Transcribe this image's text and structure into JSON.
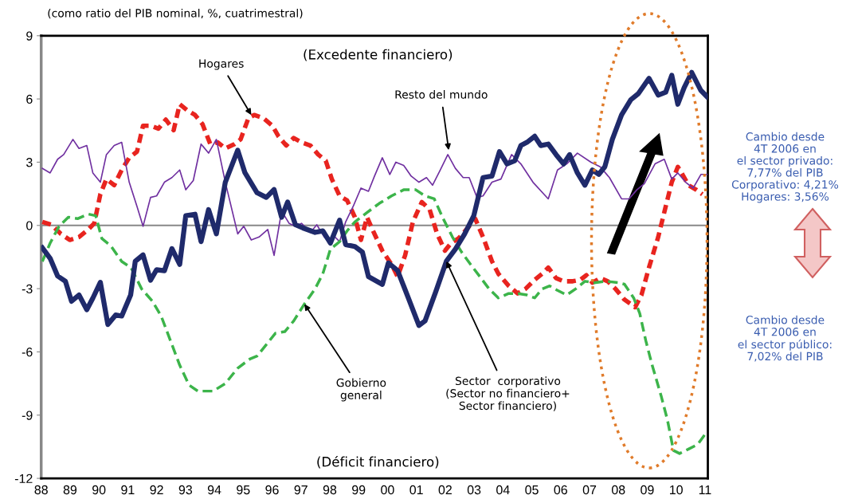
{
  "chart_data": {
    "type": "line",
    "subtitle": "(como ratio del PIB nominal, %, cuatrimestral)",
    "xlim": [
      1988,
      2011.1
    ],
    "ylim": [
      -12,
      9
    ],
    "xticks": [
      {
        "value": 1988,
        "label": "88"
      },
      {
        "value": 1989,
        "label": "89"
      },
      {
        "value": 1990,
        "label": "90"
      },
      {
        "value": 1991,
        "label": "91"
      },
      {
        "value": 1992,
        "label": "92"
      },
      {
        "value": 1993,
        "label": "93"
      },
      {
        "value": 1994,
        "label": "94"
      },
      {
        "value": 1995,
        "label": "95"
      },
      {
        "value": 1996,
        "label": "96"
      },
      {
        "value": 1997,
        "label": "97"
      },
      {
        "value": 1998,
        "label": "98"
      },
      {
        "value": 1999,
        "label": "99"
      },
      {
        "value": 2000,
        "label": "00"
      },
      {
        "value": 2001,
        "label": "01"
      },
      {
        "value": 2002,
        "label": "02"
      },
      {
        "value": 2003,
        "label": "03"
      },
      {
        "value": 2004,
        "label": "04"
      },
      {
        "value": 2005,
        "label": "05"
      },
      {
        "value": 2006,
        "label": "06"
      },
      {
        "value": 2007,
        "label": "07"
      },
      {
        "value": 2008,
        "label": "08"
      },
      {
        "value": 2009,
        "label": "09"
      },
      {
        "value": 2010,
        "label": "10"
      },
      {
        "value": 2011,
        "label": "11"
      }
    ],
    "yticks": [
      -12,
      -9,
      -6,
      -3,
      0,
      3,
      6,
      9
    ],
    "grid": false,
    "legend": false,
    "ref_lines": [
      {
        "axis": "y",
        "value": 0,
        "color": "#888888"
      }
    ],
    "series": [
      {
        "color": "#1f2a6b",
        "line_style": "solid",
        "x": [
          1988.04,
          1988.31,
          1988.57,
          1988.84,
          1989.05,
          1989.31,
          1989.58,
          1989.79,
          1990.05,
          1990.31,
          1990.58,
          1990.79,
          1991.1,
          1991.26,
          1991.53,
          1991.79,
          1992.0,
          1992.27,
          1992.53,
          1992.8,
          1993.01,
          1993.33,
          1993.54,
          1993.8,
          1994.07,
          1994.38,
          1994.81,
          1995.06,
          1995.48,
          1995.8,
          1996.07,
          1996.33,
          1996.54,
          1996.81,
          1997.07,
          1997.49,
          1997.76,
          1998.02,
          1998.34,
          1998.55,
          1998.87,
          1999.13,
          1999.34,
          1999.82,
          2000.03,
          2000.35,
          2000.72,
          2001.09,
          2001.3,
          2001.67,
          2002.04,
          2002.35,
          2002.67,
          2002.99,
          2003.31,
          2003.62,
          2003.88,
          2004.14,
          2004.41,
          2004.62,
          2004.83,
          2005.1,
          2005.31,
          2005.57,
          2005.84,
          2006.1,
          2006.31,
          2006.58,
          2006.84,
          2007.1,
          2007.32,
          2007.53,
          2007.79,
          2008.11,
          2008.43,
          2008.69,
          2009.06,
          2009.38,
          2009.64,
          2009.85,
          2010.06,
          2010.28,
          2010.54,
          2010.86,
          2011.07
        ],
        "values": [
          -1.06,
          -1.56,
          -2.4,
          -2.65,
          -3.6,
          -3.3,
          -4.0,
          -3.45,
          -2.7,
          -4.7,
          -4.25,
          -4.3,
          -3.3,
          -1.7,
          -1.4,
          -2.6,
          -2.1,
          -2.15,
          -1.1,
          -1.85,
          0.46,
          0.53,
          -0.77,
          0.75,
          -0.4,
          2.05,
          3.57,
          2.5,
          1.55,
          1.33,
          1.7,
          0.39,
          1.11,
          0.03,
          -0.12,
          -0.33,
          -0.26,
          -0.84,
          0.25,
          -0.91,
          -1.0,
          -1.27,
          -2.43,
          -2.8,
          -1.78,
          -2.14,
          -3.44,
          -4.75,
          -4.53,
          -3.15,
          -1.7,
          -1.13,
          -0.41,
          0.46,
          2.27,
          2.34,
          3.5,
          2.92,
          3.07,
          3.79,
          3.94,
          4.23,
          3.79,
          3.86,
          3.36,
          2.92,
          3.36,
          2.49,
          1.91,
          2.63,
          2.42,
          2.78,
          4.08,
          5.24,
          5.96,
          6.25,
          6.98,
          6.18,
          6.32,
          7.12,
          5.75,
          6.54,
          7.26,
          6.4,
          6.11
        ]
      },
      {
        "color": "#e8241f",
        "line_style": "dashed",
        "x": [
          1988.04,
          1988.36,
          1988.68,
          1988.99,
          1989.31,
          1989.63,
          1989.84,
          1990.05,
          1990.26,
          1990.53,
          1990.79,
          1991.05,
          1991.32,
          1991.53,
          1991.79,
          1992.06,
          1992.32,
          1992.59,
          1992.8,
          1993.06,
          1993.33,
          1993.59,
          1993.86,
          1994.12,
          1994.38,
          1994.7,
          1994.91,
          1995.18,
          1995.38,
          1995.7,
          1996.01,
          1996.22,
          1996.49,
          1996.75,
          1997.02,
          1997.33,
          1997.6,
          1997.86,
          1998.07,
          1998.34,
          1998.6,
          1998.87,
          1999.08,
          1999.29,
          1999.5,
          1999.82,
          2000.14,
          2000.35,
          2000.61,
          2000.88,
          2001.19,
          2001.46,
          2001.72,
          2001.99,
          2002.2,
          2002.46,
          2002.78,
          2003.04,
          2003.31,
          2003.62,
          2003.84,
          2004.2,
          2004.51,
          2004.78,
          2005.1,
          2005.36,
          2005.57,
          2005.84,
          2006.1,
          2006.42,
          2006.68,
          2006.89,
          2007.1,
          2007.37,
          2007.63,
          2007.9,
          2008.21,
          2008.58,
          2008.8,
          2009.06,
          2009.38,
          2009.64,
          2009.85,
          2010.06,
          2010.22,
          2010.43,
          2010.7,
          2010.91
        ],
        "values": [
          0.17,
          0.03,
          -0.4,
          -0.69,
          -0.55,
          -0.19,
          0.1,
          1.48,
          2.2,
          1.91,
          2.63,
          3.21,
          3.5,
          4.73,
          4.73,
          4.59,
          5.02,
          4.52,
          5.75,
          5.46,
          5.24,
          4.8,
          3.86,
          3.94,
          3.65,
          3.86,
          4.08,
          5.09,
          5.24,
          5.09,
          4.73,
          4.23,
          3.79,
          4.15,
          3.94,
          3.79,
          3.36,
          3.07,
          2.2,
          1.4,
          1.19,
          0.39,
          -0.69,
          0.39,
          -0.26,
          -1.2,
          -1.85,
          -2.43,
          -1.42,
          0.17,
          1.11,
          0.75,
          -0.4,
          -1.2,
          -0.84,
          -0.62,
          -0.12,
          0.32,
          -0.55,
          -1.7,
          -2.29,
          -2.87,
          -3.23,
          -3.01,
          -2.58,
          -2.29,
          -2.0,
          -2.5,
          -2.65,
          -2.65,
          -2.58,
          -2.36,
          -2.72,
          -2.5,
          -2.65,
          -3.01,
          -3.52,
          -3.88,
          -3.3,
          -2.0,
          -0.55,
          0.9,
          2.05,
          2.78,
          2.42,
          1.91,
          1.69,
          1.48
        ]
      },
      {
        "color": "#3cb44a",
        "line_style": "dashed",
        "x": [
          1988.04,
          1988.31,
          1988.62,
          1988.94,
          1989.26,
          1989.63,
          1989.89,
          1990.1,
          1990.42,
          1990.79,
          1991.11,
          1991.48,
          1991.85,
          1992.16,
          1992.48,
          1992.8,
          1993.12,
          1993.43,
          1993.96,
          1994.38,
          1994.81,
          1995.23,
          1995.48,
          1996.12,
          1996.44,
          1996.75,
          1997.12,
          1997.49,
          1997.76,
          1998.02,
          1998.34,
          1998.6,
          1998.87,
          1999.29,
          1999.71,
          2000.14,
          2000.56,
          2000.98,
          2001.3,
          2001.62,
          2001.93,
          2002.25,
          2002.57,
          2002.88,
          2003.2,
          2003.52,
          2003.84,
          2004.2,
          2004.51,
          2004.83,
          2005.1,
          2005.36,
          2005.62,
          2005.89,
          2006.21,
          2006.52,
          2006.84,
          2007.16,
          2007.58,
          2008.0,
          2008.21,
          2008.53,
          2008.74,
          2008.95,
          2009.17,
          2009.48,
          2009.7,
          2009.91,
          2010.12,
          2010.43,
          2010.75,
          2011.02
        ],
        "values": [
          -1.71,
          -0.84,
          -0.04,
          0.39,
          0.32,
          0.54,
          0.46,
          -0.62,
          -0.98,
          -1.71,
          -2.0,
          -3.01,
          -3.59,
          -4.31,
          -5.47,
          -6.63,
          -7.57,
          -7.86,
          -7.86,
          -7.5,
          -6.77,
          -6.34,
          -6.2,
          -5.11,
          -5.04,
          -4.53,
          -3.73,
          -3.01,
          -2.29,
          -1.13,
          -0.77,
          -0.26,
          0.17,
          0.61,
          1.04,
          1.4,
          1.69,
          1.69,
          1.4,
          1.26,
          0.32,
          -0.55,
          -1.27,
          -1.85,
          -2.43,
          -3.01,
          -3.44,
          -3.23,
          -3.23,
          -3.3,
          -3.44,
          -3.01,
          -2.87,
          -3.08,
          -3.3,
          -3.01,
          -2.65,
          -2.72,
          -2.65,
          -2.72,
          -2.79,
          -3.44,
          -4.17,
          -5.47,
          -6.63,
          -8.08,
          -9.23,
          -10.68,
          -10.82,
          -10.61,
          -10.39,
          -9.88
        ]
      },
      {
        "color": "#7030a0",
        "line_style": "solid",
        "x": [
          1988.04,
          1988.31,
          1988.57,
          1988.78,
          1989.1,
          1989.31,
          1989.58,
          1989.79,
          1990.05,
          1990.26,
          1990.53,
          1990.79,
          1991.05,
          1991.32,
          1991.53,
          1991.79,
          1992.0,
          1992.27,
          1992.53,
          1992.8,
          1993.01,
          1993.27,
          1993.54,
          1993.8,
          1994.07,
          1994.38,
          1994.81,
          1995.02,
          1995.28,
          1995.55,
          1995.85,
          1996.07,
          1996.33,
          1996.59,
          1996.81,
          1997.02,
          1997.33,
          1997.55,
          1997.81,
          1998.02,
          1998.13,
          1998.34,
          1998.55,
          1998.81,
          1999.08,
          1999.34,
          1999.55,
          1999.82,
          2000.08,
          2000.29,
          2000.56,
          2000.82,
          2001.09,
          2001.35,
          2001.56,
          2001.83,
          2002.09,
          2002.35,
          2002.62,
          2002.83,
          2003.1,
          2003.31,
          2003.62,
          2003.93,
          2004.3,
          2004.62,
          2005.04,
          2005.57,
          2005.89,
          2006.21,
          2006.58,
          2007.05,
          2007.37,
          2007.69,
          2008.11,
          2008.37,
          2008.64,
          2008.9,
          2009.27,
          2009.59,
          2009.85,
          2010.06,
          2010.33,
          2010.59,
          2010.86,
          2011.07
        ],
        "values": [
          2.71,
          2.49,
          3.14,
          3.36,
          4.08,
          3.65,
          3.79,
          2.49,
          2.05,
          3.36,
          3.79,
          3.94,
          2.05,
          0.9,
          -0.04,
          1.33,
          1.4,
          2.05,
          2.27,
          2.63,
          1.69,
          2.13,
          3.86,
          3.43,
          4.08,
          2.05,
          -0.4,
          -0.04,
          -0.69,
          -0.55,
          -0.19,
          -1.42,
          0.68,
          0.1,
          -0.04,
          0.1,
          -0.33,
          0.03,
          -0.55,
          -0.84,
          -0.48,
          -0.77,
          0.17,
          0.9,
          1.77,
          1.62,
          2.34,
          3.21,
          2.42,
          3.0,
          2.85,
          2.34,
          2.05,
          2.27,
          1.91,
          2.63,
          3.36,
          2.71,
          2.27,
          2.27,
          1.33,
          1.4,
          2.05,
          2.2,
          3.36,
          2.92,
          2.05,
          1.26,
          2.63,
          2.92,
          3.43,
          3.0,
          2.78,
          2.27,
          1.26,
          1.26,
          1.69,
          1.98,
          2.92,
          3.14,
          2.2,
          2.49,
          2.05,
          1.77,
          2.42,
          2.42
        ]
      }
    ],
    "annotations": [
      {
        "text": "Hogares",
        "x": 1995.28,
        "y": 5.24
      },
      {
        "text": "Resto del mundo",
        "x": 2002.12,
        "y": 3.57
      },
      {
        "text": "Gobierno\ngeneral",
        "x": 1997.12,
        "y": -3.73
      },
      {
        "text": "Sector  corporativo\n(Sector no financiero+\nSector financiero)",
        "x": 2002.04,
        "y": -1.7
      },
      "(Excedente financiero)",
      "(Déficit financiero)",
      "Cambio desde\n4T 2006 en\nel sector privado:\n7,77% del PIB\nCorporativo: 4,21%\nHogares: 3,56%",
      "Cambio desde\n4T 2006 en\nel sector público:\n7,02% del PIB"
    ]
  }
}
